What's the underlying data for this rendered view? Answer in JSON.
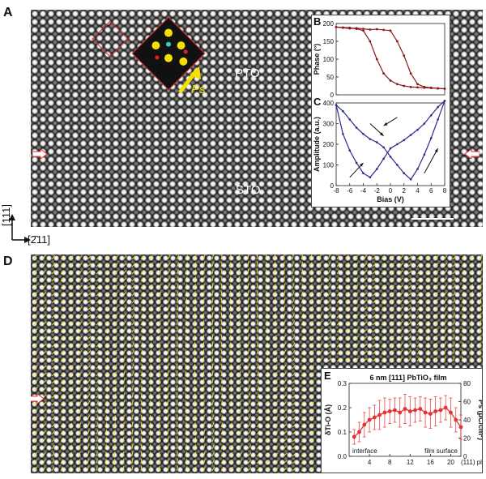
{
  "panels": {
    "a": {
      "letter": "A",
      "pto_label": "PTO",
      "sto_label": "STO",
      "ps_label": "Ps"
    },
    "b": {
      "letter": "B"
    },
    "c": {
      "letter": "C"
    },
    "d": {
      "letter": "D"
    },
    "e": {
      "letter": "E"
    }
  },
  "axes_indicator": {
    "vertical": "[111]",
    "horizontal": "[2̄11]"
  },
  "colors": {
    "loop_phase": "#8b1a1a",
    "loop_amplitude": "#2b2a8c",
    "polar_arrows": "#f2e21a",
    "profile": "#e53232",
    "interface_marker": "#e53232"
  },
  "chart_data": [
    {
      "type": "line",
      "panel": "B",
      "ylabel": "Phase (°)",
      "ylim": [
        0,
        200
      ],
      "yticks": [
        "0",
        "50",
        "100",
        "150",
        "200"
      ],
      "xlim": [
        -8,
        8
      ],
      "series": [
        {
          "x": [
            -8,
            -7,
            -6,
            -5,
            -4,
            -3,
            -2,
            -1,
            0,
            1,
            2,
            3,
            4,
            5,
            6,
            7,
            8
          ],
          "values": [
            190,
            188,
            186,
            187,
            185,
            183,
            184,
            182,
            180,
            150,
            110,
            60,
            30,
            22,
            20,
            18,
            17
          ]
        },
        {
          "x": [
            8,
            7,
            6,
            5,
            4,
            3,
            2,
            1,
            0,
            -1,
            -2,
            -3,
            -4,
            -5,
            -6,
            -7,
            -8
          ],
          "values": [
            17,
            18,
            19,
            20,
            21,
            22,
            25,
            30,
            40,
            60,
            100,
            150,
            180,
            185,
            188,
            189,
            190
          ]
        }
      ]
    },
    {
      "type": "line",
      "panel": "C",
      "xlabel": "Bias (V)",
      "ylabel": "Amplitude (a.u.)",
      "xlim": [
        -8,
        8
      ],
      "ylim": [
        0,
        400
      ],
      "xticks": [
        "-8",
        "-6",
        "-4",
        "-2",
        "0",
        "2",
        "4",
        "6",
        "8"
      ],
      "yticks": [
        "0",
        "100",
        "200",
        "300",
        "400"
      ],
      "series": [
        {
          "x": [
            -8,
            -7,
            -6,
            -5,
            -4,
            -3,
            -2,
            -1,
            0,
            1,
            2,
            3,
            4,
            5,
            6,
            7,
            8
          ],
          "values": [
            390,
            360,
            320,
            280,
            250,
            225,
            210,
            185,
            140,
            100,
            60,
            30,
            80,
            150,
            230,
            320,
            410
          ]
        },
        {
          "x": [
            8,
            7,
            6,
            5,
            4,
            3,
            2,
            1,
            0,
            -1,
            -2,
            -3,
            -4,
            -5,
            -6,
            -7,
            -8
          ],
          "values": [
            410,
            380,
            340,
            300,
            270,
            245,
            220,
            200,
            180,
            130,
            80,
            40,
            60,
            110,
            170,
            250,
            390
          ]
        }
      ]
    },
    {
      "type": "line",
      "panel": "E",
      "title": "6 nm [111] PbTiO₃ film",
      "ylabel": "δTi-O (Å)",
      "y2label": "Ps (μC/cm²)",
      "xlabel_right": "(111) plane",
      "xticks": [
        "4",
        "8",
        "12",
        "16",
        "20"
      ],
      "yticks": [
        "0.0",
        "0.1",
        "0.2",
        "0.3"
      ],
      "y2ticks": [
        "0",
        "20",
        "40",
        "60",
        "80"
      ],
      "xlim": [
        0,
        22
      ],
      "ylim": [
        0,
        0.3
      ],
      "annotations": [
        "interface",
        "film surface"
      ],
      "x": [
        1,
        2,
        3,
        4,
        5,
        6,
        7,
        8,
        9,
        10,
        11,
        12,
        13,
        14,
        15,
        16,
        17,
        18,
        19,
        20,
        21,
        22
      ],
      "values": [
        0.08,
        0.1,
        0.13,
        0.15,
        0.16,
        0.17,
        0.18,
        0.185,
        0.19,
        0.18,
        0.195,
        0.185,
        0.19,
        0.195,
        0.18,
        0.175,
        0.185,
        0.19,
        0.2,
        0.18,
        0.15,
        0.12
      ],
      "errors": [
        0.03,
        0.04,
        0.05,
        0.05,
        0.05,
        0.06,
        0.06,
        0.05,
        0.05,
        0.06,
        0.06,
        0.06,
        0.05,
        0.05,
        0.06,
        0.06,
        0.06,
        0.05,
        0.05,
        0.06,
        0.05,
        0.05
      ]
    }
  ]
}
